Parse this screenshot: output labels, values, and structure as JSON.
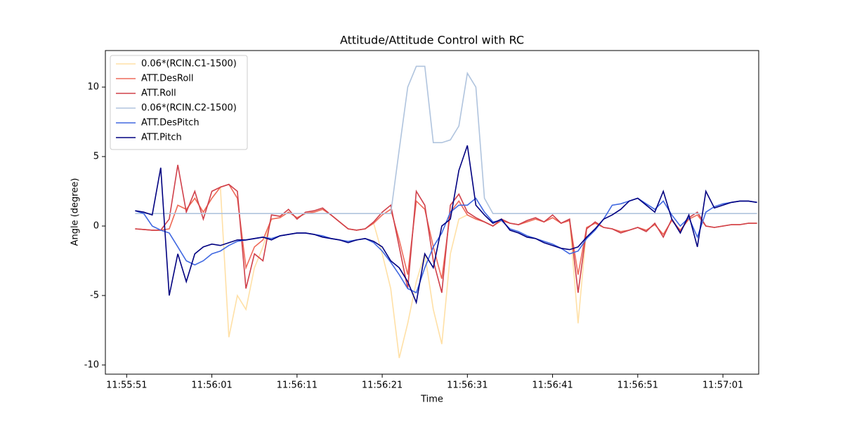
{
  "chart_data": {
    "type": "line",
    "title": "Attitude/Attitude Control with RC",
    "xlabel": "Time",
    "ylabel": "Angle (degree)",
    "x": [
      "11:55:52",
      "11:55:53",
      "11:55:54",
      "11:55:55",
      "11:55:56",
      "11:55:57",
      "11:55:58",
      "11:55:59",
      "11:56:00",
      "11:56:01",
      "11:56:02",
      "11:56:03",
      "11:56:04",
      "11:56:05",
      "11:56:06",
      "11:56:07",
      "11:56:08",
      "11:56:09",
      "11:56:10",
      "11:56:11",
      "11:56:12",
      "11:56:13",
      "11:56:14",
      "11:56:15",
      "11:56:16",
      "11:56:17",
      "11:56:18",
      "11:56:19",
      "11:56:20",
      "11:56:21",
      "11:56:22",
      "11:56:23",
      "11:56:24",
      "11:56:25",
      "11:56:26",
      "11:56:27",
      "11:56:28",
      "11:56:29",
      "11:56:30",
      "11:56:31",
      "11:56:32",
      "11:56:33",
      "11:56:34",
      "11:56:35",
      "11:56:36",
      "11:56:37",
      "11:56:38",
      "11:56:39",
      "11:56:40",
      "11:56:41",
      "11:56:42",
      "11:56:43",
      "11:56:44",
      "11:56:45",
      "11:56:46",
      "11:56:47",
      "11:56:48",
      "11:56:49",
      "11:56:50",
      "11:56:51",
      "11:56:52",
      "11:56:53",
      "11:56:54",
      "11:56:55",
      "11:56:56",
      "11:56:57",
      "11:56:58",
      "11:56:59",
      "11:57:00",
      "11:57:01",
      "11:57:02",
      "11:57:03",
      "11:57:04",
      "11:57:05"
    ],
    "series": [
      {
        "name": "0.06*(RCIN.C1-1500)",
        "color": "#ffe0a6",
        "values": [
          -0.2,
          -0.25,
          -0.3,
          -0.3,
          -0.2,
          1.5,
          1.2,
          2.0,
          1.0,
          2.0,
          2.8,
          -8.0,
          -5.0,
          -6.0,
          -3.0,
          -1.5,
          0.5,
          0.6,
          1.0,
          0.6,
          0.9,
          1.0,
          1.2,
          0.8,
          0.3,
          -0.2,
          -0.3,
          -0.2,
          0.2,
          -2.0,
          -4.5,
          -9.5,
          -7.0,
          -4.0,
          -2.0,
          -6.0,
          -8.5,
          -2.0,
          0.5,
          0.8,
          0.5,
          0.3,
          0.0,
          0.4,
          0.2,
          0.1,
          0.3,
          0.5,
          0.3,
          0.6,
          0.2,
          0.4,
          -7.0,
          -0.1,
          0.2,
          -0.1,
          -0.2,
          -0.4,
          -0.3,
          -0.1,
          -0.3,
          0.1,
          -0.6,
          0.4,
          -0.3,
          0.5,
          0.8,
          0.0,
          -0.1,
          0.0,
          0.1,
          0.1,
          0.2,
          0.2
        ]
      },
      {
        "name": "ATT.DesRoll",
        "color": "#ee6a5a",
        "values": [
          -0.2,
          -0.25,
          -0.3,
          -0.3,
          -0.2,
          1.5,
          1.2,
          2.0,
          1.0,
          2.0,
          2.8,
          3.0,
          2.0,
          -3.0,
          -1.5,
          -1.0,
          0.5,
          0.6,
          1.0,
          0.6,
          0.9,
          1.0,
          1.2,
          0.8,
          0.3,
          -0.2,
          -0.3,
          -0.2,
          0.2,
          0.8,
          1.2,
          -1.0,
          -3.5,
          1.8,
          1.2,
          -1.5,
          -3.8,
          1.0,
          1.8,
          0.8,
          0.5,
          0.3,
          0.0,
          0.4,
          0.2,
          0.1,
          0.3,
          0.5,
          0.3,
          0.6,
          0.2,
          0.4,
          -3.5,
          -0.1,
          0.2,
          -0.1,
          -0.2,
          -0.4,
          -0.3,
          -0.1,
          -0.3,
          0.1,
          -0.6,
          0.4,
          -0.3,
          0.5,
          0.8,
          0.0,
          -0.1,
          0.0,
          0.1,
          0.1,
          0.2,
          0.2
        ]
      },
      {
        "name": "ATT.Roll",
        "color": "#d0404a",
        "values": [
          -0.2,
          -0.25,
          -0.3,
          -0.3,
          0.5,
          4.4,
          1.0,
          2.5,
          0.5,
          2.5,
          2.8,
          3.0,
          2.5,
          -4.5,
          -2.0,
          -2.5,
          0.8,
          0.7,
          1.2,
          0.5,
          1.0,
          1.1,
          1.3,
          0.8,
          0.3,
          -0.2,
          -0.3,
          -0.2,
          0.3,
          1.0,
          1.5,
          -1.5,
          -4.5,
          2.5,
          1.5,
          -2.5,
          -4.8,
          1.5,
          2.3,
          1.0,
          0.6,
          0.3,
          0.0,
          0.5,
          0.2,
          0.1,
          0.4,
          0.6,
          0.3,
          0.8,
          0.2,
          0.5,
          -4.8,
          -0.2,
          0.3,
          -0.1,
          -0.2,
          -0.5,
          -0.3,
          -0.1,
          -0.4,
          0.2,
          -0.8,
          0.5,
          -0.4,
          0.6,
          1.0,
          0.0,
          -0.1,
          0.0,
          0.1,
          0.1,
          0.2,
          0.2
        ]
      },
      {
        "name": "0.06*(RCIN.C2-1500)",
        "color": "#b0c4de",
        "values": [
          0.9,
          0.9,
          0.9,
          0.9,
          0.9,
          0.9,
          0.9,
          0.9,
          0.9,
          0.9,
          0.9,
          0.9,
          0.9,
          0.9,
          0.9,
          0.9,
          0.9,
          0.9,
          0.9,
          0.9,
          0.9,
          0.9,
          0.9,
          0.9,
          0.9,
          0.9,
          0.9,
          0.9,
          0.9,
          0.9,
          0.9,
          5.5,
          10,
          11.5,
          11.5,
          6,
          6,
          6.2,
          7.2,
          11,
          10,
          2,
          0.9,
          0.9,
          0.9,
          0.9,
          0.9,
          0.9,
          0.9,
          0.9,
          0.9,
          0.9,
          0.9,
          0.9,
          0.9,
          0.9,
          0.9,
          0.9,
          0.9,
          0.9,
          0.9,
          0.9,
          0.9,
          0.9,
          0.9,
          0.9,
          0.9,
          0.9,
          0.9,
          0.9,
          0.9,
          0.9,
          0.9,
          0.9
        ]
      },
      {
        "name": "ATT.DesPitch",
        "color": "#4169e1",
        "values": [
          1.1,
          0.9,
          0.0,
          -0.3,
          -0.5,
          -1.5,
          -2.5,
          -2.8,
          -2.5,
          -2.0,
          -1.8,
          -1.4,
          -1.1,
          -1.0,
          -0.9,
          -0.8,
          -0.9,
          -0.7,
          -0.6,
          -0.5,
          -0.5,
          -0.6,
          -0.7,
          -0.9,
          -1.0,
          -1.1,
          -1.0,
          -0.9,
          -1.2,
          -1.8,
          -2.6,
          -3.5,
          -4.5,
          -4.8,
          -3.0,
          -1.5,
          -0.5,
          1.0,
          1.5,
          1.5,
          2.0,
          1.0,
          0.3,
          0.4,
          -0.2,
          -0.4,
          -0.7,
          -0.9,
          -1.1,
          -1.3,
          -1.6,
          -2.0,
          -1.8,
          -0.9,
          -0.3,
          0.5,
          1.5,
          1.6,
          1.8,
          2.0,
          1.6,
          1.2,
          1.8,
          0.8,
          0.0,
          0.6,
          -0.8,
          1.0,
          1.4,
          1.6,
          1.7,
          1.8,
          1.8,
          1.7
        ]
      },
      {
        "name": "ATT.Pitch",
        "color": "#000080",
        "values": [
          1.1,
          1.0,
          0.8,
          4.2,
          -5.0,
          -2.0,
          -4.0,
          -2.0,
          -1.5,
          -1.3,
          -1.4,
          -1.2,
          -1.0,
          -1.0,
          -0.9,
          -0.8,
          -1.0,
          -0.7,
          -0.6,
          -0.5,
          -0.5,
          -0.6,
          -0.8,
          -0.9,
          -1.0,
          -1.2,
          -1.0,
          -0.9,
          -1.1,
          -1.5,
          -2.5,
          -3.0,
          -4.0,
          -5.5,
          -2.0,
          -3.0,
          0.0,
          0.5,
          4.0,
          5.8,
          1.5,
          0.8,
          0.2,
          0.5,
          -0.3,
          -0.5,
          -0.8,
          -0.9,
          -1.2,
          -1.4,
          -1.6,
          -1.7,
          -1.5,
          -0.8,
          -0.2,
          0.5,
          0.8,
          1.2,
          1.8,
          2.0,
          1.5,
          1.0,
          2.5,
          0.5,
          -0.5,
          0.8,
          -1.5,
          2.5,
          1.3,
          1.5,
          1.7,
          1.8,
          1.8,
          1.7
        ]
      }
    ],
    "xlim": [
      "11:55:48.5",
      "11:57:05.2"
    ],
    "xticks": [
      "11:55:51",
      "11:56:01",
      "11:56:11",
      "11:56:21",
      "11:56:31",
      "11:56:41",
      "11:56:51",
      "11:57:01"
    ],
    "ylim": [
      -10.66,
      12.63
    ],
    "yticks": [
      -10,
      -5,
      0,
      5,
      10
    ],
    "legend": "upper left"
  }
}
